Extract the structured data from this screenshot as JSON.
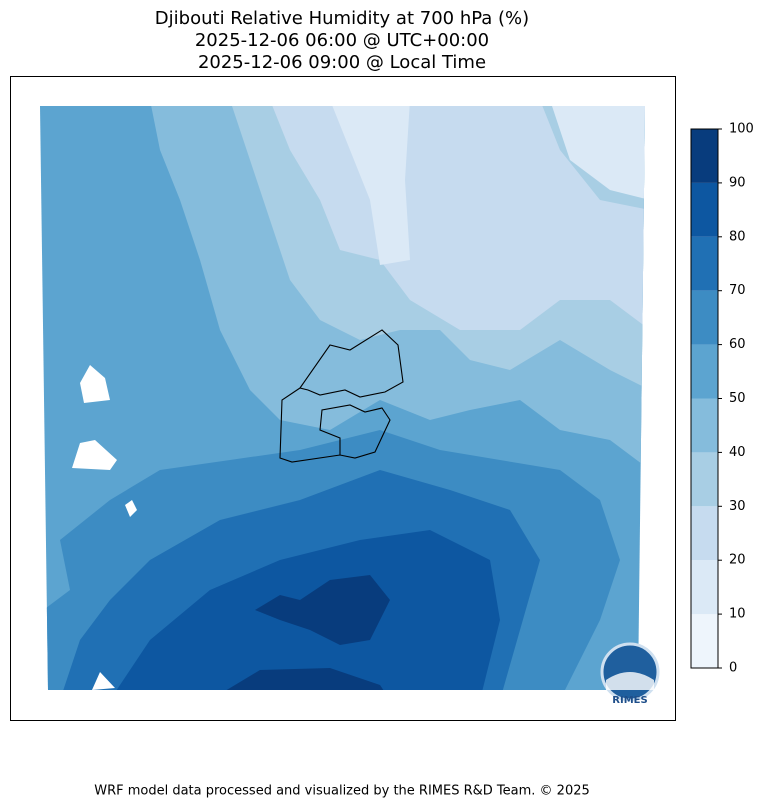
{
  "title": [
    "Djibouti Relative Humidity at 700 hPa (%)",
    "2025-12-06 06:00 @ UTC+00:00",
    "2025-12-06 09:00 @ Local Time"
  ],
  "colorbar": {
    "ticks": [
      0,
      10,
      20,
      30,
      40,
      50,
      60,
      70,
      80,
      90,
      100
    ],
    "colors": [
      "#eef5fc",
      "#dbe9f6",
      "#c6dbef",
      "#a8cee4",
      "#85bcdc",
      "#5ca4d0",
      "#3d8cc3",
      "#2070b4",
      "#0d57a1",
      "#083c7d"
    ]
  },
  "logo": "RIMES",
  "footer": "WRF model data processed and visualized by the RIMES R&D Team. © 2025"
}
